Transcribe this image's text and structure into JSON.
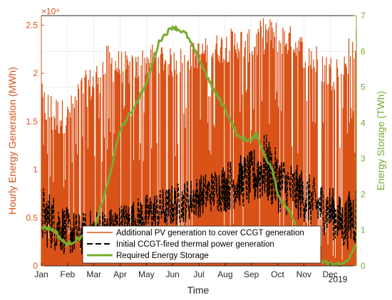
{
  "chart_data": {
    "type": "area",
    "xlabel": "Time",
    "ylabel_left": "Hourly Energy Generation (MWh)",
    "ylabel_right": "Energy Storage (TWh)",
    "exponent_label": "×10⁴",
    "year_label": "2019",
    "x_ticks": [
      "Jan",
      "Feb",
      "Mar",
      "Apr",
      "May",
      "Jun",
      "Jul",
      "Aug",
      "Sep",
      "Oct",
      "Nov",
      "Dec"
    ],
    "y_left_ticks": [
      "0",
      "0.5",
      "1",
      "1.5",
      "2",
      "2.5"
    ],
    "y_right_ticks": [
      "0",
      "1",
      "2",
      "3",
      "4",
      "5",
      "6",
      "7"
    ],
    "ylim_left": [
      0,
      2.6
    ],
    "ylim_right": [
      0,
      7
    ],
    "xlim_months": [
      0,
      12
    ],
    "grid": true,
    "legend_position": "bottom-center",
    "colors": {
      "pv": "#D95319",
      "ccgt": "#000000",
      "storage": "#77AC30",
      "axis_text": "#262626"
    },
    "series": [
      {
        "name": "Additional PV generation to cover CCGT generation",
        "axis": "left",
        "style": "area",
        "month": [
          0,
          0.5,
          1,
          1.5,
          2,
          2.5,
          3,
          3.5,
          4,
          4.5,
          5,
          5.5,
          6,
          6.5,
          7,
          7.5,
          8,
          8.5,
          9,
          9.5,
          10,
          10.5,
          11,
          11.5,
          12
        ],
        "envelope": [
          1.9,
          1.8,
          1.7,
          2.0,
          2.1,
          2.3,
          2.25,
          2.2,
          2.3,
          2.35,
          2.25,
          2.3,
          2.35,
          2.4,
          2.45,
          2.5,
          2.45,
          2.6,
          2.55,
          2.5,
          2.4,
          2.3,
          2.2,
          2.3,
          2.55
        ],
        "typical": [
          1.5,
          1.3,
          1.4,
          1.6,
          1.7,
          1.9,
          1.9,
          1.85,
          1.95,
          2.0,
          1.95,
          2.0,
          2.05,
          2.1,
          2.1,
          2.15,
          2.1,
          2.2,
          2.2,
          2.15,
          2.05,
          1.95,
          1.8,
          1.9,
          2.1
        ]
      },
      {
        "name": "Initial CCGT-fired thermal power generation",
        "axis": "left",
        "style": "dashed",
        "month": [
          0,
          0.5,
          1,
          1.5,
          2,
          2.5,
          3,
          3.5,
          4,
          4.5,
          5,
          5.5,
          6,
          6.5,
          7,
          7.5,
          8,
          8.5,
          9,
          9.5,
          10,
          10.5,
          11,
          11.5,
          12
        ],
        "peak": [
          0.85,
          0.75,
          0.6,
          0.55,
          0.6,
          0.6,
          0.65,
          0.7,
          0.75,
          0.8,
          0.85,
          0.9,
          0.95,
          1.0,
          1.1,
          1.15,
          1.2,
          1.4,
          1.2,
          1.1,
          1.0,
          0.9,
          0.85,
          0.7,
          0.9
        ],
        "trough": [
          0.2,
          0.15,
          0.1,
          0.1,
          0.1,
          0.15,
          0.2,
          0.25,
          0.3,
          0.35,
          0.4,
          0.45,
          0.5,
          0.55,
          0.55,
          0.6,
          0.6,
          0.65,
          0.55,
          0.5,
          0.45,
          0.35,
          0.3,
          0.15,
          0.2
        ]
      },
      {
        "name": "Required Energy Storage",
        "axis": "right",
        "style": "solid",
        "month": [
          0,
          0.5,
          0.8,
          1.0,
          1.5,
          2.0,
          2.5,
          3.0,
          3.5,
          4.0,
          4.5,
          5.0,
          5.5,
          6.0,
          6.5,
          7.0,
          7.5,
          8.0,
          8.2,
          8.5,
          8.8,
          9.0,
          9.5,
          10.0,
          10.5,
          11.0,
          11.5,
          11.8,
          12
        ],
        "values": [
          1.1,
          1.0,
          0.7,
          0.6,
          0.8,
          1.0,
          2.2,
          3.8,
          4.4,
          5.1,
          6.3,
          6.7,
          6.5,
          5.8,
          5.0,
          4.4,
          3.6,
          3.5,
          3.7,
          3.1,
          2.7,
          2.0,
          1.5,
          0.6,
          0.15,
          0.05,
          0.05,
          0.3,
          0.6
        ]
      }
    ]
  }
}
